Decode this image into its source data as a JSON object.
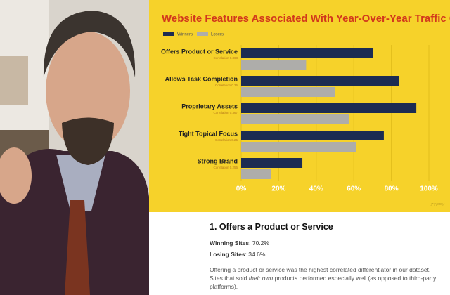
{
  "chart_data": {
    "type": "bar",
    "orientation": "horizontal",
    "title": "Website Features Associated With Year-Over-Year Traffic Cha",
    "categories": [
      "Offers Product or Service",
      "Allows Task Completion",
      "Proprietary Assets",
      "Tight Topical Focus",
      "Strong Brand"
    ],
    "category_sublabels": [
      "Correlation 0.368",
      "Correlation 0.36",
      "Correlation 0.367",
      "Correlation 0.25",
      "Correlation 0.256"
    ],
    "series": [
      {
        "name": "Winners",
        "color": "#1c2c52",
        "values": [
          70.2,
          84,
          93.3,
          76,
          32.6
        ]
      },
      {
        "name": "Losers",
        "color": "#aeadaa",
        "values": [
          34.6,
          50,
          57.3,
          61.4,
          16.1
        ]
      }
    ],
    "xlim": [
      0,
      100
    ],
    "xticks": [
      {
        "value": 0,
        "label": "0%"
      },
      {
        "value": 20,
        "label": "20%"
      },
      {
        "value": 40,
        "label": "40%"
      },
      {
        "value": 60,
        "label": "60%"
      },
      {
        "value": 80,
        "label": "80%"
      },
      {
        "value": 100,
        "label": "100%"
      }
    ],
    "grid": true,
    "watermark": "ZYPPY"
  },
  "article": {
    "heading": "1. Offers a Product or Service",
    "stats": [
      {
        "label": "Winning Sites",
        "text": ": 70.2%"
      },
      {
        "label": "Losing Sites",
        "text": ": 34.6%"
      }
    ],
    "paragraph": [
      "Offering a product or service was the highest correlated differentiator in our dataset. Sites that sold ",
      "their own",
      " products performed especially well (as opposed to third-party platforms)."
    ]
  }
}
